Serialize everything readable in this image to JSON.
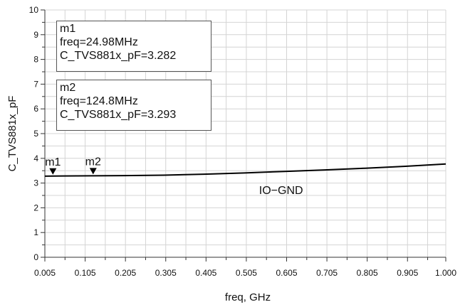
{
  "chart_data": {
    "type": "line",
    "title": "",
    "xlabel": "freq, GHz",
    "ylabel": "C_TVS881x_pF",
    "xlim": [
      0.005,
      1.0
    ],
    "ylim": [
      0,
      10
    ],
    "x_ticks": [
      "0.005",
      "0.055",
      "0.105",
      "0.155",
      "0.205",
      "0.255",
      "0.305",
      "0.355",
      "0.405",
      "0.455",
      "0.505",
      "0.555",
      "0.605",
      "0.655",
      "0.705",
      "0.755",
      "0.805",
      "0.855",
      "0.905",
      "0.955",
      "1.000"
    ],
    "x_tick_labels": [
      "0.005",
      "0.105",
      "0.205",
      "0.305",
      "0.405",
      "0.505",
      "0.605",
      "0.705",
      "0.805",
      "0.905",
      "1.000"
    ],
    "y_ticks": [
      "0",
      "1",
      "2",
      "3",
      "4",
      "5",
      "6",
      "7",
      "8",
      "9",
      "10"
    ],
    "grid": true,
    "series": [
      {
        "label": "IO−GND",
        "color": "#000000",
        "x": [
          0.005,
          0.025,
          0.05,
          0.125,
          0.2,
          0.3,
          0.4,
          0.5,
          0.6,
          0.7,
          0.8,
          0.9,
          1.0
        ],
        "y": [
          3.28,
          3.282,
          3.285,
          3.293,
          3.3,
          3.32,
          3.36,
          3.41,
          3.47,
          3.53,
          3.6,
          3.68,
          3.77
        ]
      }
    ],
    "markers": [
      {
        "name": "m1",
        "x": 0.02498,
        "y": 3.282,
        "lines": [
          "m1",
          "freq=24.98MHz",
          "C_TVS881x_pF=3.282"
        ]
      },
      {
        "name": "m2",
        "x": 0.1248,
        "y": 3.293,
        "lines": [
          "m2",
          "freq=124.8MHz",
          "C_TVS881x_pF=3.293"
        ]
      }
    ]
  }
}
